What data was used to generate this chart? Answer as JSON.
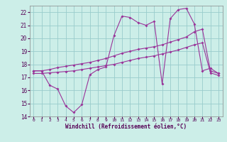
{
  "xlabel": "Windchill (Refroidissement éolien,°C)",
  "bg_color": "#cceee8",
  "grid_color": "#99cccc",
  "line_color": "#993399",
  "xlim": [
    -0.5,
    23.5
  ],
  "ylim": [
    14,
    22.5
  ],
  "xticks": [
    0,
    1,
    2,
    3,
    4,
    5,
    6,
    7,
    8,
    9,
    10,
    11,
    12,
    13,
    14,
    15,
    16,
    17,
    18,
    19,
    20,
    21,
    22,
    23
  ],
  "yticks": [
    14,
    15,
    16,
    17,
    18,
    19,
    20,
    21,
    22
  ],
  "line1_x": [
    0,
    1,
    2,
    3,
    4,
    5,
    6,
    7,
    8,
    9,
    10,
    11,
    12,
    13,
    14,
    15,
    16,
    17,
    18,
    19,
    20,
    21,
    22,
    23
  ],
  "line1_y": [
    17.5,
    17.5,
    16.4,
    16.1,
    14.8,
    14.3,
    14.9,
    17.2,
    17.6,
    17.8,
    20.2,
    21.7,
    21.6,
    21.2,
    21.0,
    21.3,
    16.5,
    21.5,
    22.2,
    22.3,
    21.1,
    17.5,
    17.7,
    17.3
  ],
  "line2_x": [
    0,
    1,
    2,
    3,
    4,
    5,
    6,
    7,
    8,
    9,
    10,
    11,
    12,
    13,
    14,
    15,
    16,
    17,
    18,
    19,
    20,
    21,
    22,
    23
  ],
  "line2_y": [
    17.5,
    17.5,
    17.6,
    17.75,
    17.85,
    17.95,
    18.05,
    18.15,
    18.3,
    18.45,
    18.65,
    18.85,
    19.0,
    19.15,
    19.25,
    19.35,
    19.5,
    19.7,
    19.9,
    20.1,
    20.5,
    20.7,
    17.5,
    17.3
  ],
  "line3_x": [
    0,
    1,
    2,
    3,
    4,
    5,
    6,
    7,
    8,
    9,
    10,
    11,
    12,
    13,
    14,
    15,
    16,
    17,
    18,
    19,
    20,
    21,
    22,
    23
  ],
  "line3_y": [
    17.3,
    17.3,
    17.35,
    17.4,
    17.45,
    17.5,
    17.6,
    17.7,
    17.8,
    17.9,
    18.0,
    18.15,
    18.3,
    18.45,
    18.55,
    18.65,
    18.8,
    18.95,
    19.1,
    19.3,
    19.5,
    19.65,
    17.35,
    17.15
  ]
}
